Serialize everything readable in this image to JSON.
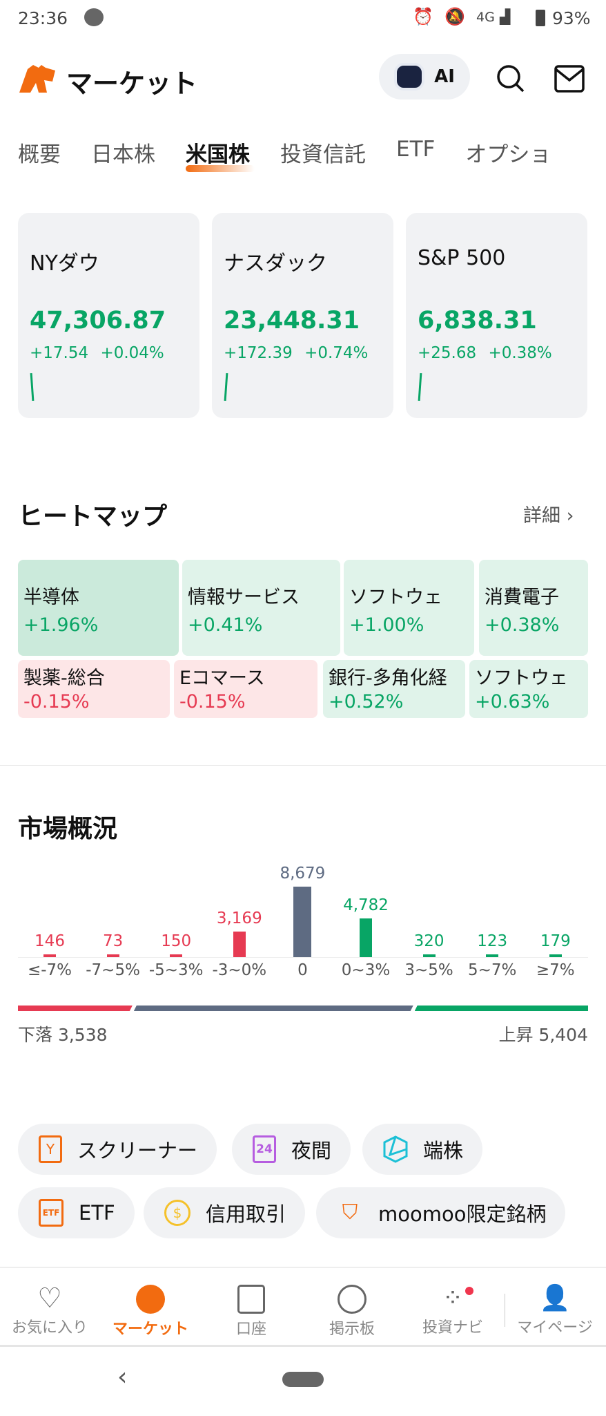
{
  "status_bar": {
    "time": "23:36",
    "network": "4G",
    "battery": "93%"
  },
  "header": {
    "title": "マーケット",
    "ai_label": "AI"
  },
  "tabs": [
    {
      "label": "概要"
    },
    {
      "label": "日本株"
    },
    {
      "label": "米国株",
      "active": true
    },
    {
      "label": "投資信託"
    },
    {
      "label": "ETF"
    },
    {
      "label": "オプショ"
    }
  ],
  "indices": [
    {
      "name": "NYダウ",
      "price": "47,306.87",
      "change": "+17.54",
      "pct": "+0.04%"
    },
    {
      "name": "ナスダック",
      "price": "23,448.31",
      "change": "+172.39",
      "pct": "+0.74%"
    },
    {
      "name": "S&P 500",
      "price": "6,838.31",
      "change": "+25.68",
      "pct": "+0.38%"
    }
  ],
  "heatmap": {
    "title": "ヒートマップ",
    "detail": "詳細",
    "cells": [
      {
        "name": "半導体",
        "value": "+1.96%"
      },
      {
        "name": "情報サービス",
        "value": "+0.41%"
      },
      {
        "name": "ソフトウェ",
        "value": "+1.00%"
      },
      {
        "name": "消費電子",
        "value": "+0.38%"
      },
      {
        "name": "製薬-総合",
        "value": "-0.15%"
      },
      {
        "name": "Eコマース",
        "value": "-0.15%"
      },
      {
        "name": "銀行-多角化経",
        "value": "+0.52%"
      },
      {
        "name": "ソフトウェ",
        "value": "+0.63%"
      }
    ]
  },
  "market_overview": {
    "title": "市場概況",
    "chart_data": {
      "type": "bar",
      "categories": [
        "≤-7%",
        "-7~5%",
        "-5~3%",
        "-3~0%",
        "0",
        "0~3%",
        "3~5%",
        "5~7%",
        "≥7%"
      ],
      "values": [
        146,
        73,
        150,
        3169,
        8679,
        4782,
        320,
        123,
        179
      ],
      "value_labels": [
        "146",
        "73",
        "150",
        "3,169",
        "8,679",
        "4,782",
        "320",
        "123",
        "179"
      ],
      "colors": [
        "#e63a52",
        "#e63a52",
        "#e63a52",
        "#e63a52",
        "#5e6b82",
        "#08a565",
        "#08a565",
        "#08a565",
        "#08a565"
      ]
    },
    "decline_label": "下落 3,538",
    "advance_label": "上昇 5,404"
  },
  "chips": [
    {
      "label": "スクリーナー",
      "icon": "filter-icon"
    },
    {
      "label": "夜間",
      "icon": "24h-icon"
    },
    {
      "label": "端株",
      "icon": "fraction-icon"
    },
    {
      "label": "ETF",
      "icon": "etf-icon"
    },
    {
      "label": "信用取引",
      "icon": "margin-icon"
    },
    {
      "label": "moomoo限定銘柄",
      "icon": "badge-icon"
    }
  ],
  "bottom_nav": [
    {
      "label": "お気に入り"
    },
    {
      "label": "マーケット",
      "active": true
    },
    {
      "label": "口座"
    },
    {
      "label": "掲示板"
    },
    {
      "label": "投資ナビ"
    },
    {
      "label": "マイページ"
    }
  ],
  "colors": {
    "accent": "#f26b10",
    "up": "#08a565",
    "down": "#e63a52",
    "neutral": "#5e6b82"
  }
}
